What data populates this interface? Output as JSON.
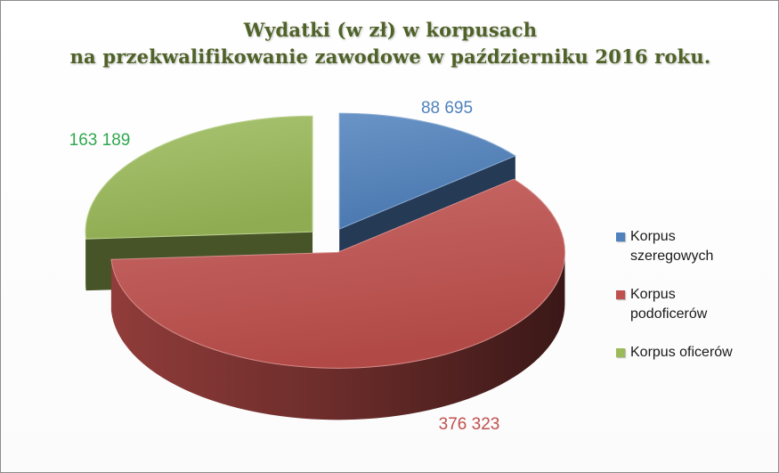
{
  "title": {
    "line1": "Wydatki (w zł) w korpusach",
    "line2": "na przekwalifikowanie zawodowe w październiku 2016 roku."
  },
  "chart_data": {
    "type": "pie",
    "three_d": true,
    "exploded": true,
    "slices": [
      {
        "name": "Korpus szeregowych",
        "value": 88695,
        "label": "88 695",
        "color": "#4f81bd"
      },
      {
        "name": "Korpus podoficerów",
        "value": 376323,
        "label": "376 323",
        "color": "#c0504d"
      },
      {
        "name": "Korpus oficerów",
        "value": 163189,
        "label": "163 189",
        "color": "#9bbb59"
      }
    ],
    "legend_position": "right"
  },
  "legend": {
    "items": [
      {
        "line1": "Korpus",
        "line2": "szeregowych",
        "color": "#4f81bd"
      },
      {
        "line1": "Korpus",
        "line2": "podoficerów",
        "color": "#c0504d"
      },
      {
        "line1": "Korpus oficerów",
        "line2": "",
        "color": "#9bbb59"
      }
    ]
  }
}
